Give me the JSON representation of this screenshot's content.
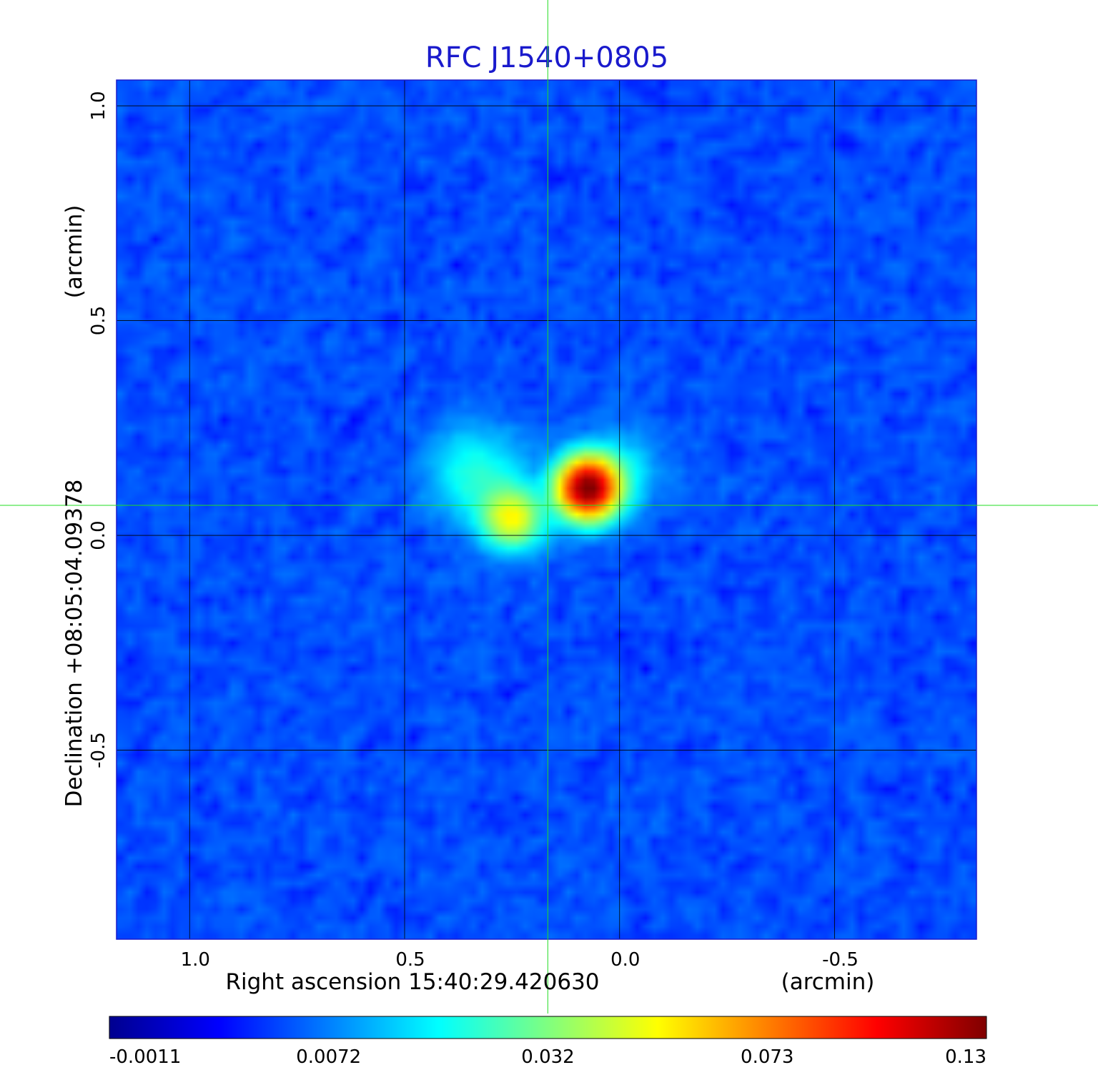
{
  "chart_data": {
    "type": "heatmap",
    "title": "RFC J1540+0805",
    "x_axis": {
      "label": "Right ascension  15:40:29.420630",
      "unit_label": "(arcmin)",
      "range": [
        1.17,
        -0.83
      ],
      "ticks": [
        1.0,
        0.5,
        0.0,
        -0.5
      ],
      "tick_labels": [
        "1.0",
        "0.5",
        "0.0",
        "-0.5"
      ]
    },
    "y_axis": {
      "label": "Declination  +08:05:04.09378",
      "unit_label": "(arcmin)",
      "range": [
        -0.94,
        1.06
      ],
      "ticks": [
        1.0,
        0.5,
        0.0,
        -0.5
      ],
      "tick_labels": [
        "1.0",
        "0.5",
        "0.0",
        "-0.5"
      ]
    },
    "grid": true,
    "crosshair": {
      "x": 0.167,
      "y": 0.07
    },
    "colorbar": {
      "orientation": "horizontal",
      "position": "bottom",
      "colormap": "jet",
      "tick_labels": [
        "-0.0011",
        "0.0072",
        "0.032",
        "0.073",
        "0.13"
      ],
      "range": [
        -0.0011,
        0.13
      ]
    },
    "components": [
      {
        "x": 0.075,
        "y": 0.11,
        "peak": 0.13,
        "sigma": 0.045
      },
      {
        "x": 0.25,
        "y": 0.04,
        "peak": 0.045,
        "sigma": 0.045
      },
      {
        "x": 0.33,
        "y": 0.14,
        "peak": 0.016,
        "sigma": 0.07
      },
      {
        "x": 0.0,
        "y": 0.15,
        "peak": 0.01,
        "sigma": 0.06
      }
    ]
  },
  "colors": {
    "title": "#1a1acc",
    "grid": "#000000",
    "crosshair": "#22dd22"
  }
}
